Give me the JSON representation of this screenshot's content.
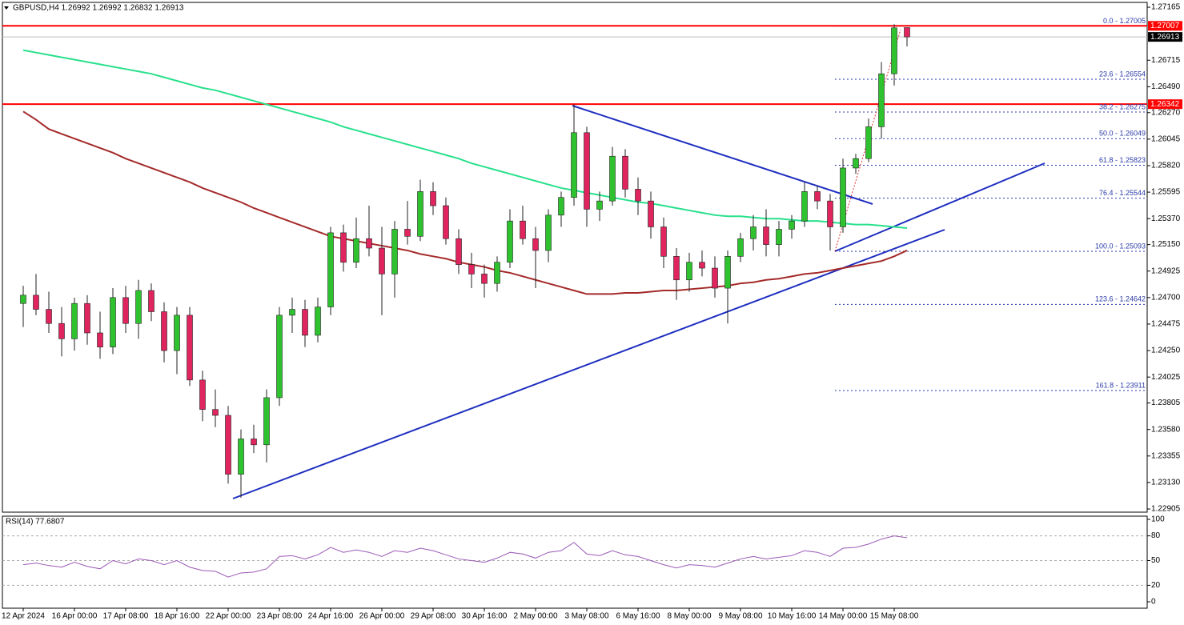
{
  "chart_data": [
    {
      "type": "candlestick",
      "title": "GBPUSD,H4  1.26992 1.26992 1.26832 1.26913",
      "categories": [
        "12 Apr 2024",
        null,
        null,
        null,
        "16 Apr 00:00",
        null,
        null,
        null,
        "17 Apr 08:00",
        null,
        null,
        null,
        "18 Apr 16:00",
        null,
        null,
        null,
        "22 Apr 00:00",
        null,
        null,
        null,
        "23 Apr 08:00",
        null,
        null,
        null,
        "24 Apr 16:00",
        null,
        null,
        null,
        "26 Apr 00:00",
        null,
        null,
        null,
        "29 Apr 08:00",
        null,
        null,
        null,
        "30 Apr 16:00",
        null,
        null,
        null,
        "2 May 00:00",
        null,
        null,
        null,
        "3 May 08:00",
        null,
        null,
        null,
        "6 May 16:00",
        null,
        null,
        null,
        "8 May 00:00",
        null,
        null,
        null,
        "9 May 08:00",
        null,
        null,
        null,
        "10 May 16:00",
        null,
        null,
        null,
        "14 May 00:00",
        null,
        null,
        null,
        "15 May 08:00",
        null
      ],
      "open": [
        1.2465,
        1.2472,
        1.246,
        1.2448,
        1.2435,
        1.2465,
        1.244,
        1.2428,
        1.247,
        1.2448,
        1.2476,
        1.2458,
        1.2425,
        1.2455,
        1.24,
        1.2375,
        1.237,
        1.232,
        1.235,
        1.2345,
        1.2385,
        1.2455,
        1.246,
        1.2438,
        1.2462,
        1.2525,
        1.25,
        1.252,
        1.2512,
        1.249,
        1.2528,
        1.2522,
        1.256,
        1.2548,
        1.252,
        1.2498,
        1.249,
        1.2482,
        1.25,
        1.2535,
        1.252,
        1.251,
        1.254,
        1.2555,
        1.261,
        1.2545,
        1.2552,
        1.259,
        1.2562,
        1.2552,
        1.253,
        1.2505,
        1.2485,
        1.25,
        1.2495,
        1.2478,
        1.2505,
        1.252,
        1.253,
        1.2515,
        1.2528,
        1.2535,
        1.256,
        1.2552,
        1.253,
        1.258,
        1.2588,
        1.2615,
        1.266,
        1.26992
      ],
      "high": [
        1.248,
        1.249,
        1.2475,
        1.2462,
        1.247,
        1.2472,
        1.2458,
        1.2478,
        1.248,
        1.2485,
        1.2482,
        1.2466,
        1.2462,
        1.2462,
        1.2408,
        1.2392,
        1.2378,
        1.2358,
        1.2362,
        1.2392,
        1.2462,
        1.247,
        1.2468,
        1.247,
        1.253,
        1.2532,
        1.2538,
        1.2548,
        1.253,
        1.2535,
        1.2552,
        1.257,
        1.2568,
        1.2555,
        1.2528,
        1.2508,
        1.2498,
        1.2505,
        1.2545,
        1.2548,
        1.253,
        1.2545,
        1.256,
        1.2634,
        1.2615,
        1.256,
        1.2598,
        1.2596,
        1.2572,
        1.256,
        1.2538,
        1.2512,
        1.2508,
        1.251,
        1.2505,
        1.251,
        1.2525,
        1.254,
        1.2545,
        1.2535,
        1.254,
        1.2568,
        1.2565,
        1.2558,
        1.2588,
        1.2592,
        1.2622,
        1.267,
        1.2702,
        1.26992
      ],
      "low": [
        1.2445,
        1.2455,
        1.244,
        1.242,
        1.2425,
        1.243,
        1.2418,
        1.2422,
        1.244,
        1.2435,
        1.245,
        1.2415,
        1.2405,
        1.2395,
        1.2365,
        1.236,
        1.2312,
        1.23,
        1.2338,
        1.233,
        1.2378,
        1.244,
        1.2428,
        1.2432,
        1.2455,
        1.2492,
        1.2495,
        1.2505,
        1.2455,
        1.247,
        1.2515,
        1.2518,
        1.254,
        1.2515,
        1.249,
        1.2478,
        1.247,
        1.2475,
        1.2495,
        1.2515,
        1.2478,
        1.25,
        1.253,
        1.2548,
        1.253,
        1.2535,
        1.2548,
        1.2555,
        1.254,
        1.252,
        1.2495,
        1.2468,
        1.2475,
        1.2488,
        1.247,
        1.2448,
        1.25,
        1.251,
        1.2505,
        1.2505,
        1.252,
        1.253,
        1.2545,
        1.251,
        1.2525,
        1.2575,
        1.2585,
        1.2605,
        1.265,
        1.26832
      ],
      "close": [
        1.2472,
        1.246,
        1.2448,
        1.2435,
        1.2465,
        1.244,
        1.2428,
        1.247,
        1.2448,
        1.2476,
        1.2458,
        1.2425,
        1.2455,
        1.24,
        1.2375,
        1.237,
        1.232,
        1.235,
        1.2345,
        1.2385,
        1.2455,
        1.246,
        1.2438,
        1.2462,
        1.2525,
        1.25,
        1.252,
        1.2512,
        1.249,
        1.2528,
        1.2522,
        1.256,
        1.2548,
        1.252,
        1.2498,
        1.249,
        1.2482,
        1.25,
        1.2535,
        1.252,
        1.251,
        1.254,
        1.2555,
        1.261,
        1.2545,
        1.2552,
        1.259,
        1.2562,
        1.2552,
        1.253,
        1.2505,
        1.2485,
        1.25,
        1.2495,
        1.2478,
        1.2505,
        1.252,
        1.253,
        1.2515,
        1.2528,
        1.2535,
        1.256,
        1.2552,
        1.253,
        1.258,
        1.2588,
        1.2615,
        1.266,
        1.2699,
        1.26913
      ],
      "bull_color": "#2fc22f",
      "bear_color": "#e0245e",
      "overlays": [
        {
          "color": "#28e08c",
          "values": [
            1.268,
            1.2678,
            1.2676,
            1.2674,
            1.2672,
            1.267,
            1.2668,
            1.2666,
            1.2664,
            1.2662,
            1.266,
            1.2657,
            1.2654,
            1.2651,
            1.2648,
            1.2646,
            1.2643,
            1.264,
            1.2637,
            1.2634,
            1.2631,
            1.2628,
            1.2625,
            1.2622,
            1.2619,
            1.2615,
            1.2612,
            1.2609,
            1.2606,
            1.2603,
            1.26,
            1.2597,
            1.2594,
            1.2591,
            1.2588,
            1.2584,
            1.2581,
            1.2578,
            1.2575,
            1.2572,
            1.2569,
            1.2566,
            1.2563,
            1.2561,
            1.2559,
            1.2557,
            1.2555,
            1.2553,
            1.2551,
            1.255,
            1.2548,
            1.2546,
            1.2544,
            1.2542,
            1.254,
            1.2539,
            1.2539,
            1.2538,
            1.2537,
            1.2537,
            1.2536,
            1.2535,
            1.2535,
            1.2534,
            1.2533,
            1.2532,
            1.2532,
            1.2531,
            1.253,
            1.2529
          ]
        },
        {
          "color": "#a52a2a",
          "values": [
            1.2628,
            1.2621,
            1.2613,
            1.2609,
            1.2605,
            1.2601,
            1.2597,
            1.2593,
            1.2588,
            1.2584,
            1.258,
            1.2576,
            1.2572,
            1.2568,
            1.2563,
            1.2559,
            1.2555,
            1.2551,
            1.2546,
            1.2542,
            1.2538,
            1.2534,
            1.253,
            1.2526,
            1.2522,
            1.252,
            1.2518,
            1.2516,
            1.2514,
            1.2512,
            1.251,
            1.2507,
            1.2505,
            1.2503,
            1.25,
            1.2498,
            1.2496,
            1.2493,
            1.2491,
            1.2488,
            1.2485,
            1.2482,
            1.2479,
            1.2476,
            1.2473,
            1.2473,
            1.2473,
            1.2474,
            1.2474,
            1.2475,
            1.2476,
            1.2476,
            1.2477,
            1.2478,
            1.2479,
            1.248,
            1.2482,
            1.2483,
            1.2485,
            1.2486,
            1.2488,
            1.249,
            1.2491,
            1.2493,
            1.2495,
            1.2497,
            1.2499,
            1.2501,
            1.2505,
            1.251
          ]
        }
      ],
      "ylim": [
        1.22878,
        1.27206
      ],
      "yticks": [
        1.27165,
        1.26715,
        {
          "value": 1.2649,
          "label": "1.26490"
        },
        {
          "value": 1.2627,
          "label": "1.26270"
        },
        1.26045,
        {
          "value": 1.2582,
          "label": "1.25820"
        },
        1.25595,
        {
          "value": 1.2537,
          "label": "1.25370"
        },
        {
          "value": 1.2515,
          "label": "1.25150"
        },
        1.24925,
        {
          "value": 1.247,
          "label": "1.24700"
        },
        1.24475,
        {
          "value": 1.2425,
          "label": "1.24250"
        },
        1.24025,
        1.23805,
        {
          "value": 1.2358,
          "label": "1.23580"
        },
        1.23355,
        {
          "value": 1.2313,
          "label": "1.23130"
        },
        1.22905
      ],
      "price_lines": [
        {
          "value": 1.27007,
          "color": "#ff0000"
        },
        {
          "value": 1.26913,
          "color": "#000000"
        },
        {
          "value": 1.26342,
          "color": "#ff0000"
        }
      ],
      "fibonacci": [
        {
          "label": "0.0 - 1.27005",
          "value": 1.27005
        },
        {
          "label": "23.6 - 1.26554",
          "value": 1.26554
        },
        {
          "label": "38.2 - 1.26275",
          "value": 1.26275
        },
        {
          "label": "50.0 - 1.26049",
          "value": 1.26049
        },
        {
          "label": "61.8 - 1.25823",
          "value": 1.25823
        },
        {
          "label": "76.4 - 1.25544",
          "value": 1.25544
        },
        {
          "label": "100.0 - 1.25093",
          "value": 1.25093
        },
        {
          "label": "123.6 - 1.24642",
          "value": 1.24642
        },
        {
          "label": "161.8 - 1.23911",
          "value": 1.23911
        }
      ]
    },
    {
      "type": "line",
      "title": "RSI(14) 77.6807",
      "color": "#9b59b6",
      "values": [
        45,
        47,
        44,
        42,
        48,
        43,
        40,
        50,
        46,
        52,
        50,
        45,
        50,
        42,
        38,
        37,
        30,
        35,
        36,
        40,
        55,
        56,
        52,
        57,
        66,
        60,
        63,
        60,
        55,
        62,
        60,
        65,
        62,
        57,
        52,
        50,
        48,
        53,
        60,
        58,
        53,
        60,
        62,
        72,
        58,
        56,
        62,
        57,
        55,
        50,
        45,
        41,
        45,
        44,
        42,
        47,
        52,
        55,
        52,
        54,
        56,
        62,
        60,
        55,
        65,
        66,
        70,
        76,
        80,
        77.6807
      ],
      "ylim": [
        0,
        100
      ],
      "yticks": [
        100,
        80,
        50,
        20,
        0
      ]
    }
  ]
}
